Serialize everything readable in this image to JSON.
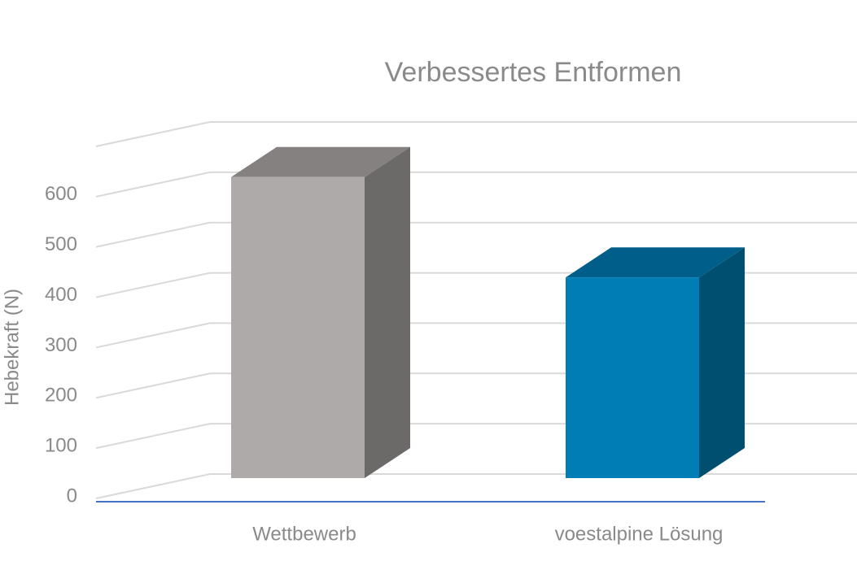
{
  "chart_data": {
    "type": "bar3d",
    "title": "Verbessertes Entformen",
    "y_label": "Hebekraft (N)",
    "categories": [
      "Wettbewerb",
      "voestalpine Lösung"
    ],
    "values": [
      600,
      400
    ],
    "colors": [
      "#aeaaa9",
      "#007db5"
    ],
    "ylim": [
      0,
      700
    ],
    "yticks": [
      0,
      100,
      200,
      300,
      400,
      500,
      600
    ],
    "grid": true
  }
}
